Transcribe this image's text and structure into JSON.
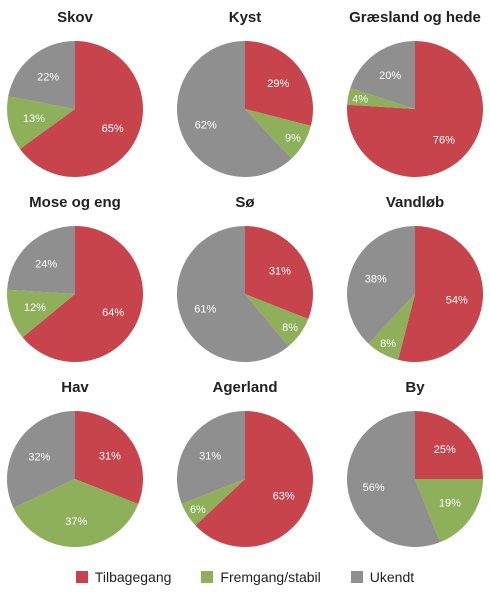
{
  "colors": {
    "tilbagegang": "#c8444c",
    "fremgang": "#8fb05a",
    "ukendt": "#8f8f8f"
  },
  "legend": [
    {
      "key": "tilbagegang",
      "label": "Tilbagegang"
    },
    {
      "key": "fremgang",
      "label": "Fremgang/stabil"
    },
    {
      "key": "ukendt",
      "label": "Ukendt"
    }
  ],
  "chart_data": [
    {
      "type": "pie",
      "title": "Skov",
      "labels": [
        "Tilbagegang",
        "Fremgang/stabil",
        "Ukendt"
      ],
      "values": [
        65,
        13,
        22
      ],
      "value_labels": [
        "65%",
        "13%",
        "22%"
      ]
    },
    {
      "type": "pie",
      "title": "Kyst",
      "labels": [
        "Tilbagegang",
        "Fremgang/stabil",
        "Ukendt"
      ],
      "values": [
        29,
        9,
        62
      ],
      "value_labels": [
        "29%",
        "9%",
        "62%"
      ]
    },
    {
      "type": "pie",
      "title": "Græsland og hede",
      "labels": [
        "Tilbagegang",
        "Fremgang/stabil",
        "Ukendt"
      ],
      "values": [
        76,
        4,
        20
      ],
      "value_labels": [
        "76%",
        "4%",
        "20%"
      ]
    },
    {
      "type": "pie",
      "title": "Mose og eng",
      "labels": [
        "Tilbagegang",
        "Fremgang/stabil",
        "Ukendt"
      ],
      "values": [
        64,
        12,
        24
      ],
      "value_labels": [
        "64%",
        "12%",
        "24%"
      ]
    },
    {
      "type": "pie",
      "title": "Sø",
      "labels": [
        "Tilbagegang",
        "Fremgang/stabil",
        "Ukendt"
      ],
      "values": [
        31,
        8,
        61
      ],
      "value_labels": [
        "31%",
        "8%",
        "61%"
      ]
    },
    {
      "type": "pie",
      "title": "Vandløb",
      "labels": [
        "Tilbagegang",
        "Fremgang/stabil",
        "Ukendt"
      ],
      "values": [
        54,
        8,
        38
      ],
      "value_labels": [
        "54%",
        "8%",
        "38%"
      ]
    },
    {
      "type": "pie",
      "title": "Hav",
      "labels": [
        "Tilbagegang",
        "Fremgang/stabil",
        "Ukendt"
      ],
      "values": [
        31,
        37,
        32
      ],
      "value_labels": [
        "31%",
        "37%",
        "32%"
      ]
    },
    {
      "type": "pie",
      "title": "Agerland",
      "labels": [
        "Tilbagegang",
        "Fremgang/stabil",
        "Ukendt"
      ],
      "values": [
        63,
        6,
        31
      ],
      "value_labels": [
        "63%",
        "6%",
        "31%"
      ]
    },
    {
      "type": "pie",
      "title": "By",
      "labels": [
        "Tilbagegang",
        "Fremgang/stabil",
        "Ukendt"
      ],
      "values": [
        25,
        19,
        56
      ],
      "value_labels": [
        "25%",
        "19%",
        "56%"
      ]
    }
  ]
}
